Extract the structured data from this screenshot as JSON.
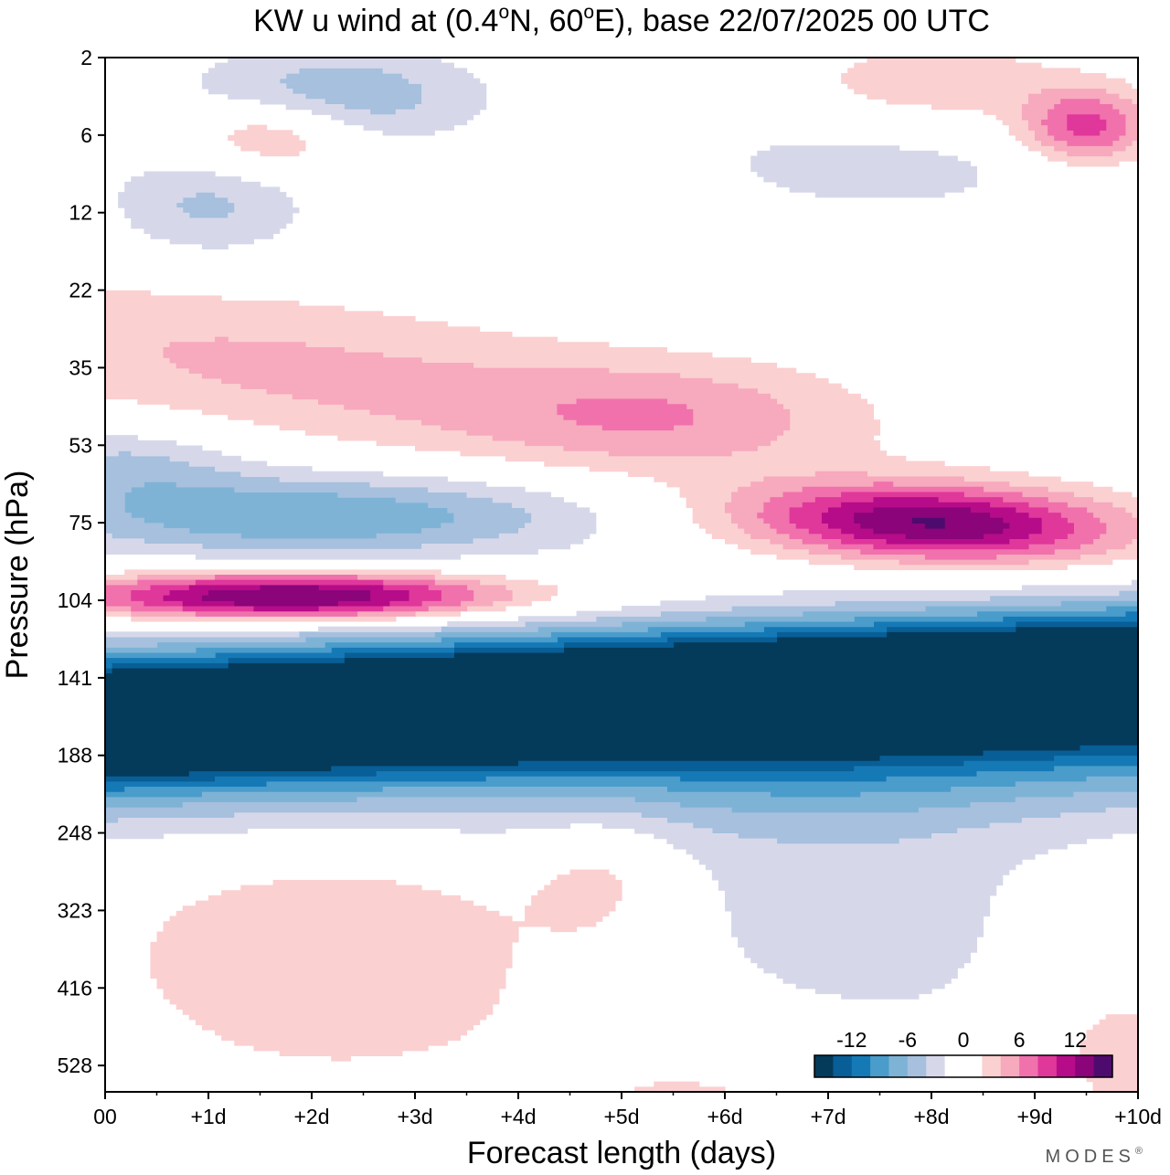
{
  "chart_data": {
    "type": "heatmap",
    "title_parts": {
      "prefix": "KW u wind at (0.4",
      "deg1": "o",
      "mid": "N, 60",
      "deg2": "o",
      "suffix": "E),  base 22/07/2025  00 UTC"
    },
    "xlabel": "Forecast length (days)",
    "ylabel": "Pressure (hPa)",
    "x_ticks": [
      {
        "value": 0,
        "label": "00"
      },
      {
        "value": 1,
        "label": "+1d"
      },
      {
        "value": 2,
        "label": "+2d"
      },
      {
        "value": 3,
        "label": "+3d"
      },
      {
        "value": 4,
        "label": "+4d"
      },
      {
        "value": 5,
        "label": "+5d"
      },
      {
        "value": 6,
        "label": "+6d"
      },
      {
        "value": 7,
        "label": "+7d"
      },
      {
        "value": 8,
        "label": "+8d"
      },
      {
        "value": 9,
        "label": "+9d"
      },
      {
        "value": 10,
        "label": "+10d"
      }
    ],
    "y_ticks": [
      "2",
      "6",
      "12",
      "22",
      "35",
      "53",
      "75",
      "104",
      "141",
      "188",
      "248",
      "323",
      "416",
      "528"
    ],
    "xlim": [
      0,
      10
    ],
    "levels": [
      -16,
      -14,
      -12,
      -10,
      -8,
      -6,
      -4,
      -2,
      0,
      2,
      4,
      6,
      8,
      10,
      12,
      14,
      16
    ],
    "colors": [
      "#043a5a",
      "#085e96",
      "#1579b6",
      "#4a9ccb",
      "#7eb3d6",
      "#a6c0de",
      "#d6d8ea",
      "#ffffff",
      "#ffffff",
      "#fbd0d1",
      "#f7a9bd",
      "#f071ac",
      "#e0379b",
      "#b60c89",
      "#8b0479",
      "#4e0b6e"
    ],
    "legend_labels": [
      "-12",
      "-6",
      "0",
      "6",
      "12"
    ],
    "brand": "MODES",
    "brand_mark": "®",
    "features": [
      {
        "name": "easterly-core-100-200hPa",
        "x": [
          0,
          10
        ],
        "p": [
          105,
          200
        ],
        "u_min": -20
      },
      {
        "name": "westerly-jet-100hPa",
        "x": [
          0,
          4.5
        ],
        "p": [
          90,
          115
        ],
        "u_max": 14
      },
      {
        "name": "westerly-max-75hPa",
        "x": [
          6,
          10
        ],
        "p": [
          60,
          90
        ],
        "u_max": 14
      },
      {
        "name": "easterly-band-75hPa",
        "x": [
          0,
          5.5
        ],
        "p": [
          50,
          85
        ],
        "u_min": -8
      },
      {
        "name": "westerly-band-35hPa",
        "x": [
          0,
          10
        ],
        "p": [
          22,
          55
        ],
        "u_max": 6
      },
      {
        "name": "easterly-stratosphere-4hPa",
        "x": [
          1,
          3.5
        ],
        "p": [
          2,
          8
        ],
        "u_min": -6
      },
      {
        "name": "westerly-lower-trop-350hPa",
        "x": [
          0,
          4
        ],
        "p": [
          230,
          470
        ],
        "u_max": 4
      }
    ]
  }
}
